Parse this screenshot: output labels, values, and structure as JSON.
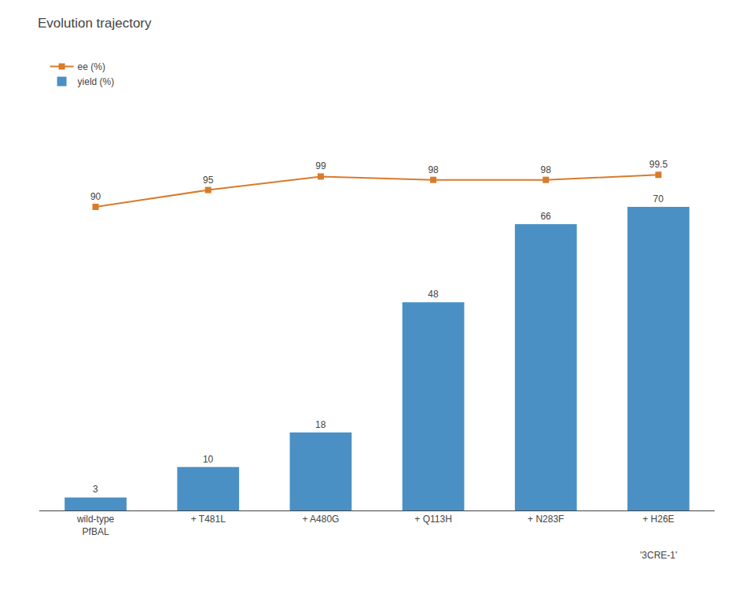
{
  "chart_data": {
    "type": "bar",
    "title": "Evolution trajectory",
    "categories": [
      "wild-type\nPfBAL",
      "+ T481L",
      "+ A480G",
      "+ Q113H",
      "+ N283F",
      "+ H26E"
    ],
    "series": [
      {
        "name": "ee (%)",
        "type": "line",
        "axis": "y2",
        "color": "#d97b2a",
        "marker": "square",
        "values": [
          90,
          95,
          99,
          98,
          98,
          99.5
        ]
      },
      {
        "name": "yield (%)",
        "type": "bar",
        "color": "#4a90c4",
        "values": [
          3,
          10,
          18,
          48,
          66,
          70
        ]
      }
    ],
    "ylim": [
      0,
      105
    ],
    "yticks": [],
    "y2lim": [
      0,
      135
    ],
    "y2ticks": [],
    "tick_labels": "x",
    "grid": false,
    "legend": "upper left",
    "data_labels": true,
    "annotations": [
      {
        "text": "'3CRE-1'",
        "x": "+ H26E"
      }
    ]
  }
}
